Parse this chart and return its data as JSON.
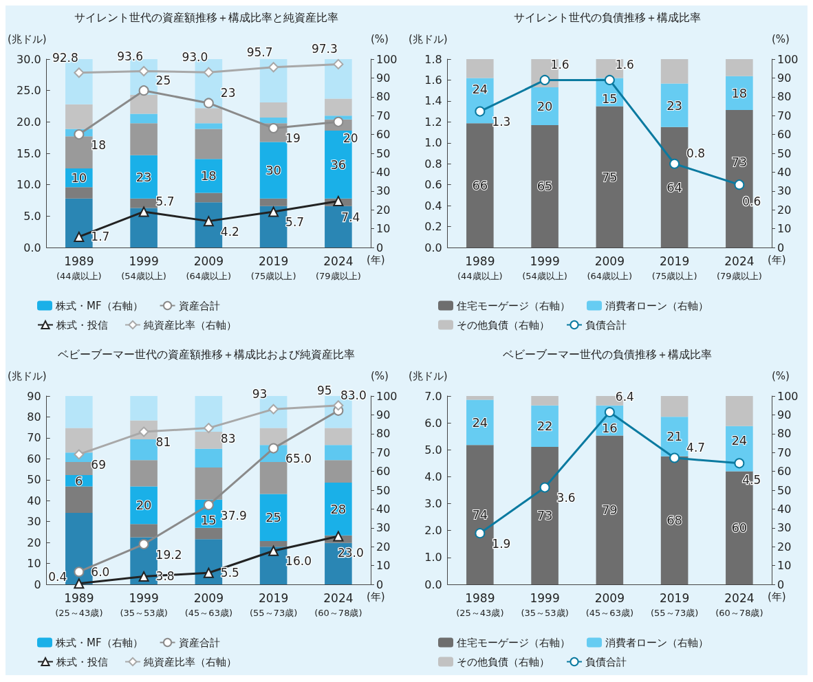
{
  "chart_data": [
    {
      "type": "bar",
      "title": "サイレント世代の資産額推移＋構成比率と純資産比率",
      "ylabel": "(兆ドル)",
      "y2label": "(%)",
      "xlabel": "(年)",
      "categories": [
        "1989\n(44歳以上)",
        "1999\n(54歳以上)",
        "2009\n(64歳以上)",
        "2019\n(75歳以上)",
        "2024\n(79歳以上)"
      ],
      "stacked": true,
      "grid": false,
      "legend": "bottom",
      "ylim": [
        0,
        30
      ],
      "yticks": [
        {
          "value": 0,
          "label": "0.0"
        },
        {
          "value": 5,
          "label": "5.0"
        },
        {
          "value": 10,
          "label": "10.0"
        },
        {
          "value": 15,
          "label": "15.0"
        },
        {
          "value": 20,
          "label": "20.0"
        },
        {
          "value": 25,
          "label": "25.0"
        },
        {
          "value": 30,
          "label": "30.0"
        }
      ],
      "y2lim": [
        0,
        100
      ],
      "y2ticks": [
        0,
        10,
        20,
        30,
        40,
        50,
        60,
        70,
        80,
        90,
        100
      ],
      "series": [
        {
          "color": "#2a86b4",
          "axis": "y2",
          "values": [
            26,
            21,
            24,
            22,
            22
          ]
        },
        {
          "color": "#7d7d7d",
          "axis": "y2",
          "values": [
            6,
            5,
            5,
            4,
            4
          ]
        },
        {
          "name": "株式・MF（右軸）",
          "color": "#1ab0e8",
          "axis": "y2",
          "values": [
            10,
            23,
            18,
            30,
            36
          ],
          "value_labels": [
            "10",
            "23",
            "18",
            "30",
            "36"
          ]
        },
        {
          "color": "#9a9a9a",
          "axis": "y2",
          "values": [
            17,
            17,
            16,
            10,
            6
          ]
        },
        {
          "color": "#5ec8f0",
          "axis": "y2",
          "values": [
            4,
            5,
            3,
            3,
            2
          ]
        },
        {
          "color": "#c4c4c4",
          "axis": "y2",
          "values": [
            13,
            10,
            8,
            8,
            9
          ]
        },
        {
          "color": "#b6e5f9",
          "axis": "y2",
          "values": [
            24,
            19,
            26,
            23,
            21
          ]
        },
        {
          "name": "資産合計",
          "type": "line",
          "color": "#8a8a8a",
          "marker": "circle",
          "axis": "y",
          "values": [
            18,
            25,
            23,
            19,
            20
          ],
          "value_labels": [
            "18",
            "25",
            "23",
            "19",
            "20"
          ]
        },
        {
          "name": "株式・投信",
          "type": "line",
          "color": "#222222",
          "marker": "triangle",
          "axis": "y",
          "values": [
            1.7,
            5.7,
            4.2,
            5.7,
            7.4
          ],
          "value_labels": [
            "1.7",
            "5.7",
            "4.2",
            "5.7",
            "7.4"
          ]
        },
        {
          "name": "純資産比率（右軸）",
          "type": "line",
          "color": "#a8a8a8",
          "marker": "diamond",
          "axis": "y2",
          "values": [
            92.8,
            93.6,
            93.0,
            95.7,
            97.3
          ],
          "value_labels": [
            "92.8",
            "93.6",
            "93.0",
            "95.7",
            "97.3"
          ]
        }
      ]
    },
    {
      "type": "bar",
      "title": "サイレント世代の負債推移＋構成比率",
      "ylabel": "(兆ドル)",
      "y2label": "(%)",
      "xlabel": "(年)",
      "categories": [
        "1989\n(44歳以上)",
        "1999\n(54歳以上)",
        "2009\n(64歳以上)",
        "2019\n(75歳以上)",
        "2024\n(79歳以上)"
      ],
      "stacked": true,
      "grid": false,
      "legend": "bottom",
      "ylim": [
        0,
        1.8
      ],
      "yticks": [
        {
          "value": 0,
          "label": "0.0"
        },
        {
          "value": 0.2,
          "label": "0.2"
        },
        {
          "value": 0.4,
          "label": "0.4"
        },
        {
          "value": 0.6,
          "label": "0.6"
        },
        {
          "value": 0.8,
          "label": "0.8"
        },
        {
          "value": 1,
          "label": "1.0"
        },
        {
          "value": 1.2,
          "label": "1.2"
        },
        {
          "value": 1.4,
          "label": "1.4"
        },
        {
          "value": 1.6,
          "label": "1.6"
        },
        {
          "value": 1.8,
          "label": "1.8"
        }
      ],
      "y2lim": [
        0,
        100
      ],
      "y2ticks": [
        0,
        10,
        20,
        30,
        40,
        50,
        60,
        70,
        80,
        90,
        100
      ],
      "series": [
        {
          "name": "住宅モーゲージ（右軸）",
          "color": "#6e6e6e",
          "axis": "y2",
          "values": [
            66,
            65,
            75,
            64,
            73
          ],
          "value_labels": [
            "66",
            "65",
            "75",
            "64",
            "73"
          ]
        },
        {
          "name": "消費者ローン（右軸）",
          "color": "#66ccf2",
          "axis": "y2",
          "values": [
            24,
            20,
            15,
            23,
            18
          ],
          "value_labels": [
            "24",
            "20",
            "15",
            "23",
            "18"
          ]
        },
        {
          "name": "その他負債（右軸）",
          "color": "#c2c2c2",
          "axis": "y2",
          "values": [
            10,
            15,
            10,
            13,
            9
          ]
        },
        {
          "name": "負債合計",
          "type": "line",
          "color": "#0b7aa0",
          "marker": "circle",
          "axis": "y",
          "values": [
            1.3,
            1.6,
            1.6,
            0.8,
            0.6
          ],
          "value_labels": [
            "1.3",
            "1.6",
            "1.6",
            "0.8",
            "0.6"
          ]
        }
      ]
    },
    {
      "type": "bar",
      "title": "ベビーブーマー世代の資産額推移＋構成比および純資産比率",
      "ylabel": "(兆ドル)",
      "y2label": "(%)",
      "xlabel": "(年)",
      "categories": [
        "1989\n(25～43歳)",
        "1999\n(35～53歳)",
        "2009\n(45～63歳)",
        "2019\n(55～73歳)",
        "2024\n(60～78歳)"
      ],
      "stacked": true,
      "grid": false,
      "legend": "bottom",
      "ylim": [
        0,
        90
      ],
      "yticks": [
        0,
        10,
        20,
        30,
        40,
        50,
        60,
        70,
        80,
        90
      ],
      "y2lim": [
        0,
        100
      ],
      "y2ticks": [
        0,
        10,
        20,
        30,
        40,
        50,
        60,
        70,
        80,
        90,
        100
      ],
      "series": [
        {
          "color": "#2a86b4",
          "axis": "y2",
          "values": [
            38,
            25,
            24,
            20,
            22
          ]
        },
        {
          "color": "#7d7d7d",
          "axis": "y2",
          "values": [
            14,
            7,
            6,
            3,
            4
          ]
        },
        {
          "name": "株式・MF（右軸）",
          "color": "#1ab0e8",
          "axis": "y2",
          "values": [
            6,
            20,
            15,
            25,
            28
          ],
          "value_labels": [
            "6",
            "20",
            "15",
            "25",
            "28"
          ]
        },
        {
          "color": "#9a9a9a",
          "axis": "y2",
          "values": [
            7,
            14,
            17,
            17,
            12
          ]
        },
        {
          "color": "#5ec8f0",
          "axis": "y2",
          "values": [
            5,
            11,
            10,
            9,
            8
          ]
        },
        {
          "color": "#c4c4c4",
          "axis": "y2",
          "values": [
            13,
            10,
            9,
            9,
            9
          ]
        },
        {
          "color": "#b6e5f9",
          "axis": "y2",
          "values": [
            17,
            13,
            19,
            17,
            17
          ]
        },
        {
          "name": "資産合計",
          "type": "line",
          "color": "#8a8a8a",
          "marker": "circle",
          "axis": "y",
          "values": [
            6.0,
            19.2,
            37.9,
            65.0,
            83.0
          ],
          "value_labels": [
            "6.0",
            "19.2",
            "37.9",
            "65.0",
            "83.0"
          ]
        },
        {
          "name": "株式・投信",
          "type": "line",
          "color": "#222222",
          "marker": "triangle",
          "axis": "y",
          "values": [
            0.4,
            3.8,
            5.5,
            16.0,
            23.0
          ],
          "value_labels": [
            "0.4",
            "3.8",
            "5.5",
            "16.0",
            "23.0"
          ]
        },
        {
          "name": "純資産比率（右軸）",
          "type": "line",
          "color": "#a8a8a8",
          "marker": "diamond",
          "axis": "y2",
          "values": [
            69,
            81,
            83,
            93,
            95
          ],
          "value_labels": [
            "69",
            "81",
            "83",
            "93",
            "95"
          ]
        }
      ]
    },
    {
      "type": "bar",
      "title": "ベビーブーマー世代の負債推移＋構成比率",
      "ylabel": "(兆ドル)",
      "y2label": "(%)",
      "xlabel": "(年)",
      "categories": [
        "1989\n(25～43歳)",
        "1999\n(35～53歳)",
        "2009\n(45～63歳)",
        "2019\n(55～73歳)",
        "2024\n(60～78歳)"
      ],
      "stacked": true,
      "grid": false,
      "legend": "bottom",
      "ylim": [
        0,
        7
      ],
      "yticks": [
        {
          "value": 0,
          "label": "0.0"
        },
        {
          "value": 1,
          "label": "1.0"
        },
        {
          "value": 2,
          "label": "2.0"
        },
        {
          "value": 3,
          "label": "3.0"
        },
        {
          "value": 4,
          "label": "4.0"
        },
        {
          "value": 5,
          "label": "5.0"
        },
        {
          "value": 6,
          "label": "6.0"
        },
        {
          "value": 7,
          "label": "7.0"
        }
      ],
      "y2lim": [
        0,
        100
      ],
      "y2ticks": [
        0,
        10,
        20,
        30,
        40,
        50,
        60,
        70,
        80,
        90,
        100
      ],
      "series": [
        {
          "name": "住宅モーゲージ（右軸）",
          "color": "#6e6e6e",
          "axis": "y2",
          "values": [
            74,
            73,
            79,
            68,
            60
          ],
          "value_labels": [
            "74",
            "73",
            "79",
            "68",
            "60"
          ]
        },
        {
          "name": "消費者ローン（右軸）",
          "color": "#66ccf2",
          "axis": "y2",
          "values": [
            24,
            22,
            16,
            21,
            24
          ],
          "value_labels": [
            "24",
            "22",
            "16",
            "21",
            "24"
          ]
        },
        {
          "name": "その他負債（右軸）",
          "color": "#c2c2c2",
          "axis": "y2",
          "values": [
            2,
            5,
            5,
            11,
            16
          ]
        },
        {
          "name": "負債合計",
          "type": "line",
          "color": "#0b7aa0",
          "marker": "circle",
          "axis": "y",
          "values": [
            1.9,
            3.6,
            6.4,
            4.7,
            4.5
          ],
          "value_labels": [
            "1.9",
            "3.6",
            "6.4",
            "4.7",
            "4.5"
          ]
        }
      ]
    }
  ]
}
